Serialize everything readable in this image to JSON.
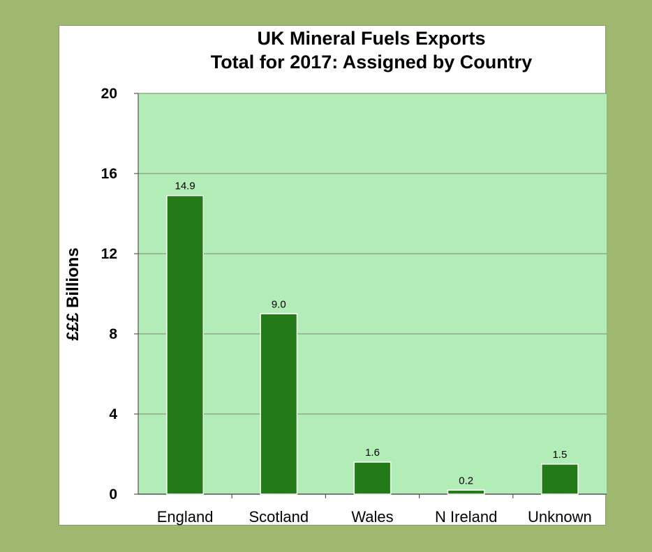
{
  "chart_data": {
    "type": "bar",
    "title": "UK Mineral Fuels Exports",
    "subtitle": "Total for 2017: Assigned by Country",
    "ylabel": "£££ Billions",
    "xlabel": "",
    "categories": [
      "England",
      "Scotland",
      "Wales",
      "N Ireland",
      "Unknown"
    ],
    "values": [
      14.9,
      9.0,
      1.6,
      0.2,
      1.5
    ],
    "data_labels": [
      "14.9",
      "9.0",
      "1.6",
      "0.2",
      "1.5"
    ],
    "ylim": [
      0,
      20
    ],
    "yticks": [
      0,
      4,
      8,
      12,
      16,
      20
    ],
    "grid": true,
    "legend": "none",
    "colors": {
      "bar": "#247a18",
      "bar_edge": "#ffffff",
      "plot_bg": "#b2ecb7",
      "grid": "#8a9a80",
      "page_bg": "#9fb86f"
    }
  }
}
